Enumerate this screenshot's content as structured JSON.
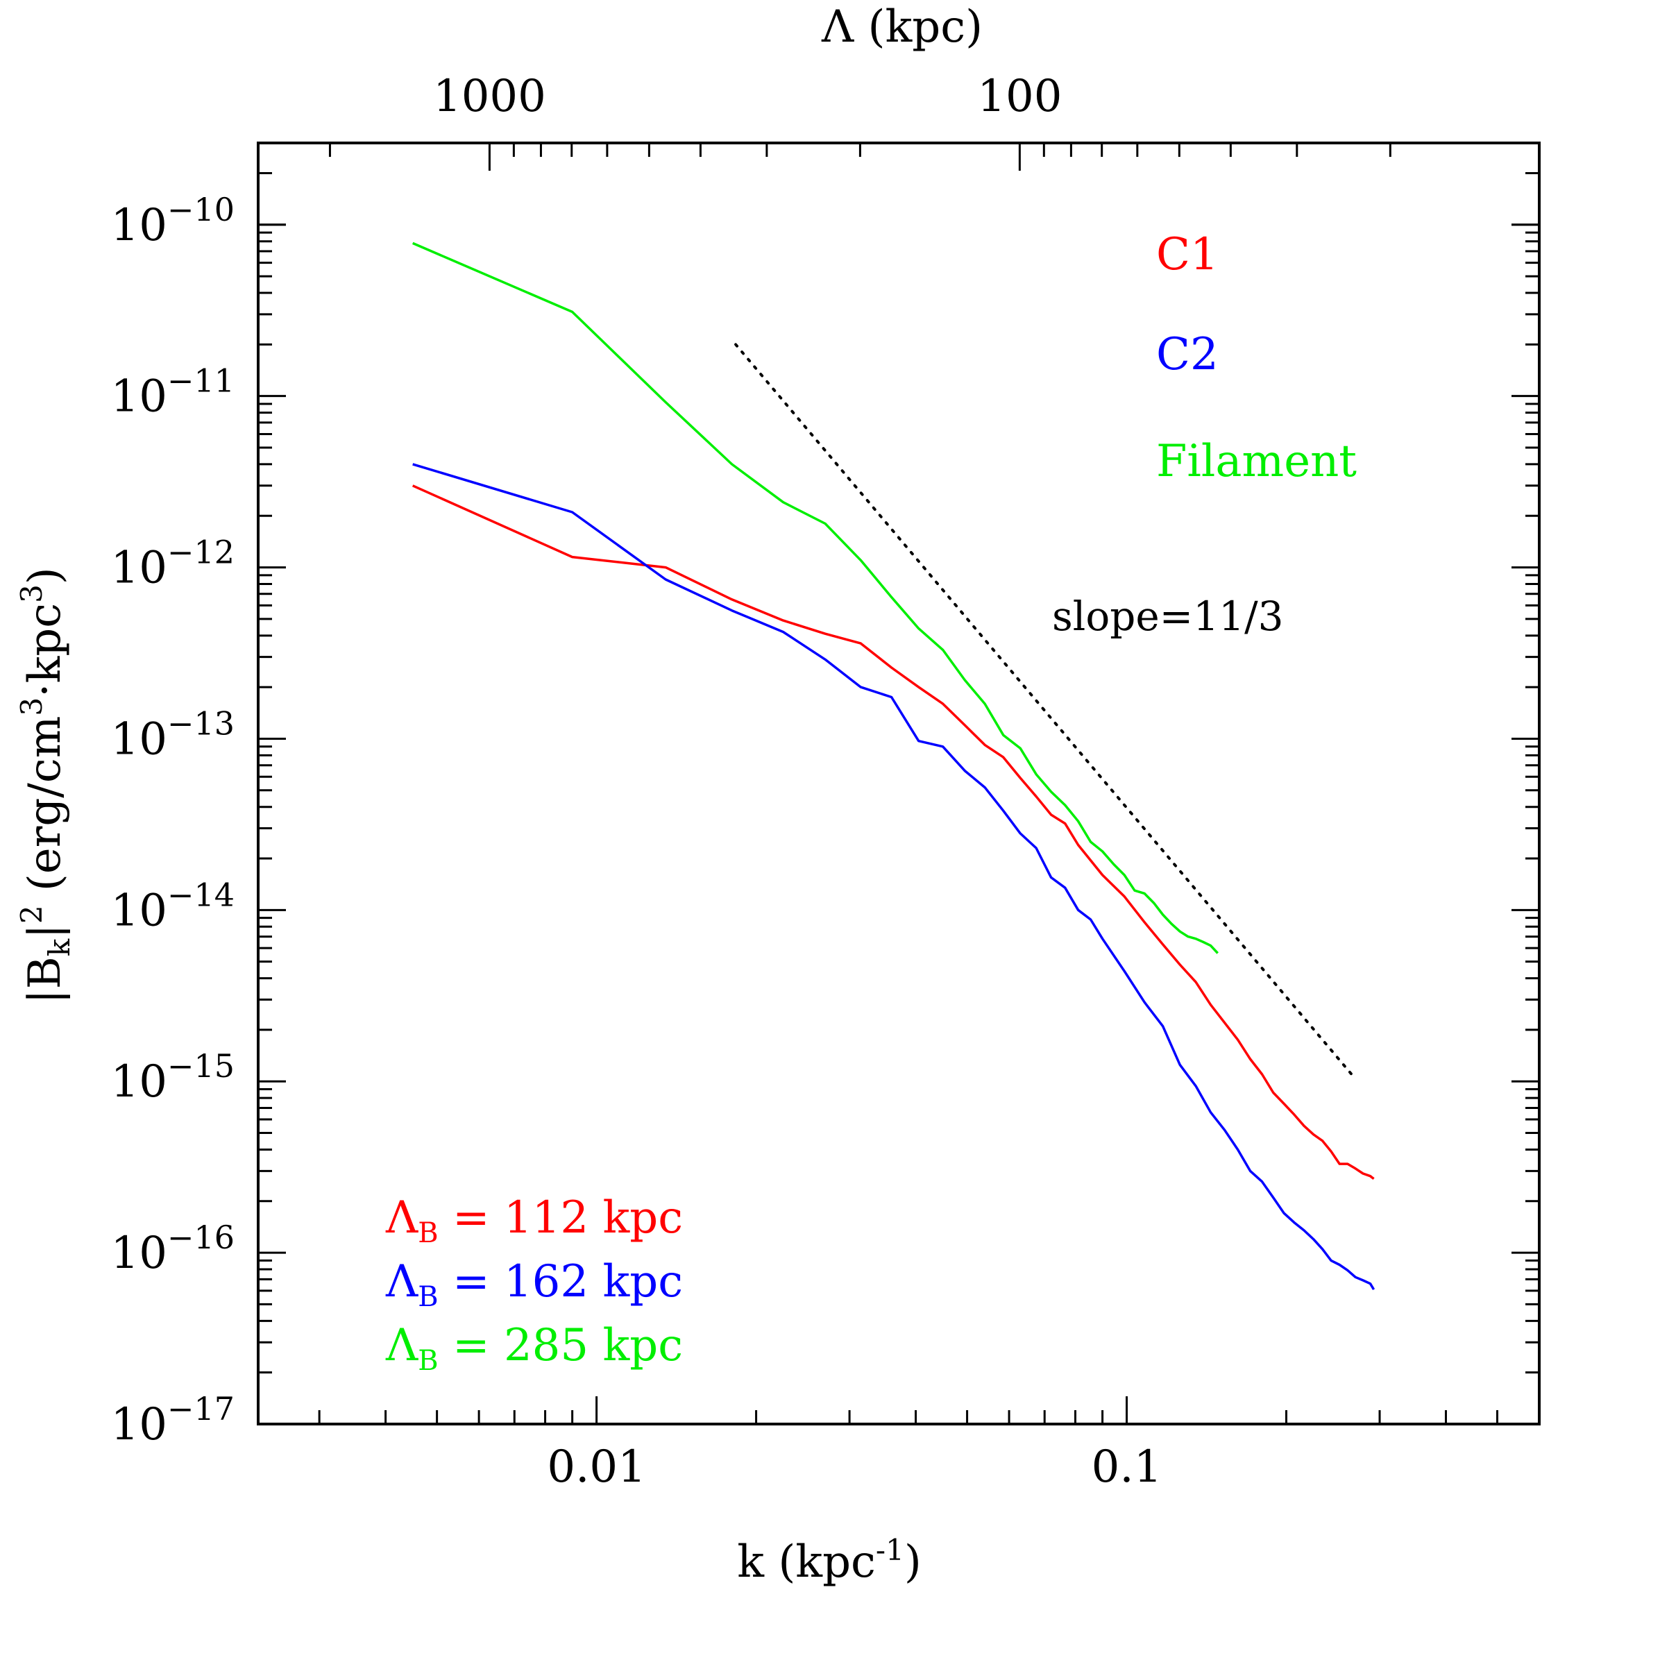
{
  "chart_data": {
    "type": "line",
    "title": "",
    "xlabel": "k (kpc",
    "xlabel_exp": "-1",
    "xlabel_close": ")",
    "xscale": "log",
    "yscale": "log",
    "xlim": [
      0.0023,
      0.6
    ],
    "ylim": [
      1e-17,
      3e-10
    ],
    "ylabel_prefix": "|B",
    "ylabel_sub": "k",
    "ylabel_sup": "2",
    "ylabel_unit_open": " (erg/cm",
    "ylabel_unit_exp1": "3",
    "ylabel_unit_mid": "·kpc",
    "ylabel_unit_exp2": "3",
    "ylabel_unit_close": ")",
    "x_ticks": [
      {
        "value": 0.01,
        "label": "0.01"
      },
      {
        "value": 0.1,
        "label": "0.1"
      }
    ],
    "y_ticks": [
      {
        "exp": -10,
        "base": "10",
        "sup": "−10"
      },
      {
        "exp": -11,
        "base": "10",
        "sup": "−11"
      },
      {
        "exp": -12,
        "base": "10",
        "sup": "−12"
      },
      {
        "exp": -13,
        "base": "10",
        "sup": "−13"
      },
      {
        "exp": -14,
        "base": "10",
        "sup": "−14"
      },
      {
        "exp": -15,
        "base": "10",
        "sup": "−15"
      },
      {
        "exp": -16,
        "base": "10",
        "sup": "−16"
      },
      {
        "exp": -17,
        "base": "10",
        "sup": "−17"
      }
    ],
    "top_axis": {
      "label": "Λ (kpc)",
      "ticks": [
        {
          "value": 1000,
          "label": "1000"
        },
        {
          "value": 100,
          "label": "100"
        }
      ]
    },
    "series": [
      {
        "name": "C1",
        "color": "#ff0000",
        "k": [
          0.0045,
          0.009,
          0.0135,
          0.018,
          0.0225,
          0.027,
          0.0315,
          0.036,
          0.0405,
          0.045,
          0.0495,
          0.054,
          0.0585,
          0.063,
          0.0675,
          0.072,
          0.0765,
          0.081,
          0.09,
          0.099,
          0.108,
          0.117,
          0.126,
          0.135,
          0.144,
          0.153,
          0.162,
          0.171,
          0.18,
          0.189,
          0.198,
          0.207,
          0.216,
          0.225,
          0.234,
          0.243,
          0.252,
          0.261,
          0.27,
          0.279,
          0.288,
          0.2925
        ],
        "values": [
          3e-12,
          1.15e-12,
          1e-12,
          6.5e-13,
          4.9e-13,
          4.1e-13,
          3.6e-13,
          2.6e-13,
          2e-13,
          1.6e-13,
          1.2e-13,
          9.2e-14,
          7.8e-14,
          5.9e-14,
          4.6e-14,
          3.6e-14,
          3.2e-14,
          2.4e-14,
          1.6e-14,
          1.2e-14,
          8.5e-15,
          6.3e-15,
          4.8e-15,
          3.8e-15,
          2.8e-15,
          2.2e-15,
          1.75e-15,
          1.35e-15,
          1.1e-15,
          8.6e-16,
          7.4e-16,
          6.4e-16,
          5.5e-16,
          4.9e-16,
          4.5e-16,
          3.9e-16,
          3.3e-16,
          3.3e-16,
          3.1e-16,
          2.9e-16,
          2.8e-16,
          2.7e-16
        ]
      },
      {
        "name": "C2",
        "color": "#0000ff",
        "k": [
          0.0045,
          0.009,
          0.0135,
          0.018,
          0.0225,
          0.027,
          0.0315,
          0.036,
          0.0405,
          0.045,
          0.0495,
          0.054,
          0.0585,
          0.063,
          0.0675,
          0.072,
          0.0765,
          0.081,
          0.0855,
          0.09,
          0.099,
          0.108,
          0.117,
          0.126,
          0.135,
          0.144,
          0.153,
          0.162,
          0.171,
          0.18,
          0.189,
          0.198,
          0.207,
          0.216,
          0.225,
          0.234,
          0.243,
          0.252,
          0.261,
          0.27,
          0.279,
          0.288,
          0.2925
        ],
        "values": [
          4e-12,
          2.1e-12,
          8.5e-13,
          5.6e-13,
          4.2e-13,
          2.9e-13,
          2e-13,
          1.75e-13,
          9.7e-14,
          9e-14,
          6.5e-14,
          5.2e-14,
          3.8e-14,
          2.8e-14,
          2.3e-14,
          1.55e-14,
          1.35e-14,
          1e-14,
          8.8e-15,
          6.8e-15,
          4.4e-15,
          2.9e-15,
          2.1e-15,
          1.25e-15,
          9.4e-16,
          6.6e-16,
          5.2e-16,
          4e-16,
          3e-16,
          2.6e-16,
          2.1e-16,
          1.7e-16,
          1.5e-16,
          1.35e-16,
          1.2e-16,
          1.05e-16,
          9e-17,
          8.5e-17,
          7.9e-17,
          7.2e-17,
          6.9e-17,
          6.6e-17,
          6.1e-17
        ]
      },
      {
        "name": "Filament",
        "color": "#00ee00",
        "k": [
          0.0045,
          0.009,
          0.0135,
          0.018,
          0.0225,
          0.027,
          0.0315,
          0.036,
          0.0405,
          0.045,
          0.0495,
          0.054,
          0.0585,
          0.063,
          0.0675,
          0.072,
          0.0765,
          0.081,
          0.0855,
          0.09,
          0.0945,
          0.099,
          0.1035,
          0.108,
          0.1125,
          0.117,
          0.1215,
          0.126,
          0.1305,
          0.135,
          0.1395,
          0.144,
          0.1485
        ],
        "values": [
          7.8e-11,
          3.1e-11,
          9.2e-12,
          4e-12,
          2.4e-12,
          1.8e-12,
          1.1e-12,
          6.7e-13,
          4.4e-13,
          3.3e-13,
          2.2e-13,
          1.6e-13,
          1.05e-13,
          8.8e-14,
          6.2e-14,
          4.9e-14,
          4.1e-14,
          3.3e-14,
          2.5e-14,
          2.2e-14,
          1.85e-14,
          1.6e-14,
          1.3e-14,
          1.25e-14,
          1.1e-14,
          9.4e-15,
          8.3e-15,
          7.5e-15,
          7e-15,
          6.8e-15,
          6.5e-15,
          6.2e-15,
          5.6e-15
        ]
      }
    ],
    "reference_line": {
      "label": "slope=11/3",
      "slope": -3.6667,
      "k_start": 0.0183,
      "k_end": 0.265,
      "value_start": 2e-11,
      "style": "dotted",
      "color": "#000000"
    },
    "legend_titles": [
      {
        "text": "C1",
        "color": "#ff0000"
      },
      {
        "text": "C2",
        "color": "#0000ff"
      },
      {
        "text": "Filament",
        "color": "#00ee00"
      }
    ],
    "legend_scales": [
      {
        "lambda": "Λ",
        "sub": "B",
        "rest": " = 112 kpc",
        "color": "#ff0000"
      },
      {
        "lambda": "Λ",
        "sub": "B",
        "rest": " = 162 kpc",
        "color": "#0000ff"
      },
      {
        "lambda": "Λ",
        "sub": "B",
        "rest": " = 285 kpc",
        "color": "#00ee00"
      }
    ]
  }
}
